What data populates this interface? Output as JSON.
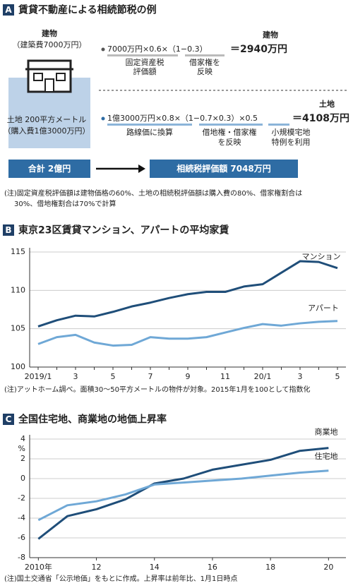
{
  "panel_a": {
    "label": "A",
    "title": "賃貸不動産による相続節税の例",
    "building_label": "建物",
    "building_cost": "（建築費7000万円）",
    "land_label": "土地 200平方メートル",
    "land_cost": "（購入費1億3000万円）",
    "formula_1": {
      "result_label": "建物",
      "expression": "7000万円×0.6×（1−0.3）",
      "result": "＝2940万円",
      "notes": [
        [
          "固定資産税",
          "評価額"
        ],
        [
          "借家権を",
          "反映"
        ]
      ]
    },
    "formula_2": {
      "result_label": "土地",
      "expression": "1億3000万円×0.8×（1−0.7×0.3）×0.5",
      "result": "＝4108万円",
      "notes": [
        [
          "路線価に換算"
        ],
        [
          "借地権・借家権",
          "を反映"
        ],
        [
          "小規模宅地",
          "特例を利用"
        ]
      ]
    },
    "total": "合計 2億円",
    "assessed": "相続税評価額 7048万円",
    "note": [
      "(注)固定資産税評価額は建物価格の60%、土地の相続税評価額は購入費の80%、借家権割合は",
      "30%、借地権割合は70%で計算"
    ]
  },
  "chart_data": [
    {
      "type": "line",
      "label": "B",
      "title": "東京23区賃貸マンション、アパートの平均家賃",
      "categories": [
        "2019/1",
        null,
        "3",
        null,
        "5",
        null,
        "7",
        null,
        "9",
        null,
        "11",
        null,
        "20/1",
        null,
        "3",
        null,
        "5"
      ],
      "series": [
        {
          "name": "マンション",
          "color": "#1f4e79",
          "values": [
            105.3,
            106.1,
            106.7,
            106.6,
            107.2,
            107.9,
            108.4,
            109.0,
            109.5,
            109.8,
            109.8,
            110.5,
            110.8,
            112.3,
            113.8,
            113.7,
            112.9
          ]
        },
        {
          "name": "アパート",
          "color": "#6fa8d6",
          "values": [
            103.0,
            103.9,
            104.2,
            103.2,
            102.8,
            102.9,
            103.9,
            103.7,
            103.7,
            103.9,
            104.5,
            105.1,
            105.6,
            105.4,
            105.7,
            105.9,
            106.0
          ]
        }
      ],
      "ylim": [
        100,
        115
      ],
      "yticks": [
        100,
        105,
        110,
        115
      ],
      "grid": true,
      "note": "(注)アットホーム調べ。面積30～50平方メートルの物件が対象。2015年1月を100として指数化"
    },
    {
      "type": "line",
      "label": "C",
      "title": "全国住宅地、商業地の地価上昇率",
      "x": [
        2010,
        2011,
        2012,
        2013,
        2014,
        2015,
        2016,
        2017,
        2018,
        2019,
        2020
      ],
      "series": [
        {
          "name": "商業地",
          "color": "#1f4e79",
          "values": [
            -6.1,
            -3.8,
            -3.1,
            -2.1,
            -0.5,
            0.0,
            0.9,
            1.4,
            1.9,
            2.8,
            3.1
          ]
        },
        {
          "name": "住宅地",
          "color": "#6fa8d6",
          "values": [
            -4.2,
            -2.7,
            -2.3,
            -1.6,
            -0.6,
            -0.4,
            -0.2,
            0.0,
            0.3,
            0.6,
            0.8
          ]
        }
      ],
      "xlim": [
        2009.7,
        2020.6
      ],
      "xticks": [
        {
          "value": 2010,
          "label": "2010年"
        },
        {
          "value": 2012,
          "label": "12"
        },
        {
          "value": 2014,
          "label": "14"
        },
        {
          "value": 2016,
          "label": "16"
        },
        {
          "value": 2018,
          "label": "18"
        },
        {
          "value": 2020,
          "label": "20"
        }
      ],
      "ylim": [
        -8,
        4
      ],
      "yticks": [
        -8,
        -6,
        -4,
        -2,
        0,
        2,
        4
      ],
      "y_unit": "%",
      "grid": true,
      "note": "(注)国土交通省「公示地価」をもとに作成。上昇率は前年比、1月1日時点"
    }
  ]
}
